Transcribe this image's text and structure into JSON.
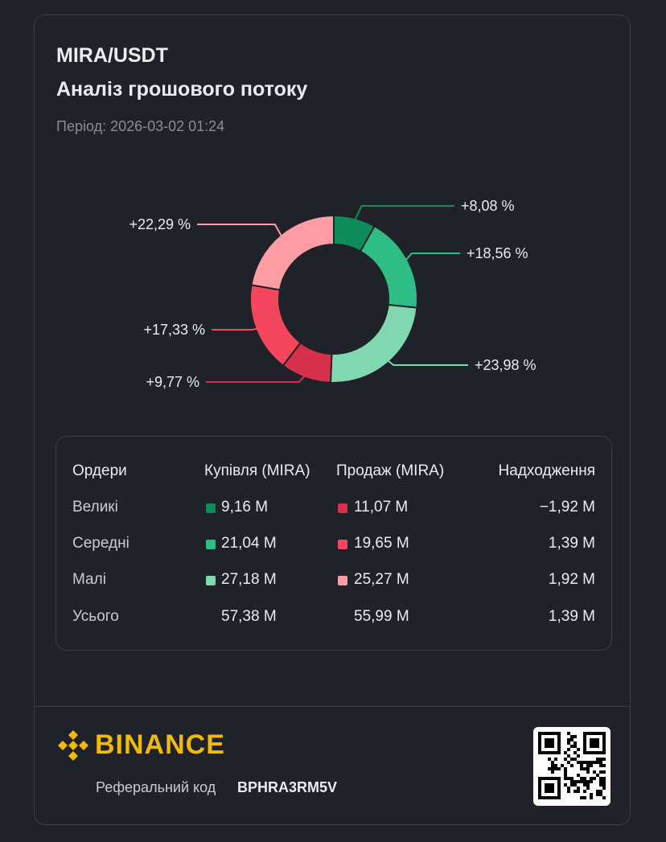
{
  "header": {
    "pair": "MIRA/USDT",
    "title": "Аналіз грошового потоку",
    "period": "Період: 2026-03-02 01:24"
  },
  "chart_data": {
    "type": "pie",
    "title": "",
    "slices": [
      {
        "label": "+8,08 %",
        "value": 8.08,
        "color": "#0e8c5a"
      },
      {
        "label": "+18,56 %",
        "value": 18.56,
        "color": "#2ebd85"
      },
      {
        "label": "+23,98 %",
        "value": 23.98,
        "color": "#7fd8b0"
      },
      {
        "label": "+9,77 %",
        "value": 9.77,
        "color": "#d6304d"
      },
      {
        "label": "+17,33 %",
        "value": 17.33,
        "color": "#f6465d"
      },
      {
        "label": "+22,29 %",
        "value": 22.29,
        "color": "#ff9ca4"
      }
    ]
  },
  "table": {
    "headers": [
      "Ордери",
      "Купівля (MIRA)",
      "Продаж (MIRA)",
      "Надходження"
    ],
    "rows": [
      {
        "label": "Великі",
        "buy": "9,16 M",
        "sell": "11,07 M",
        "inflow": "−1,92 M",
        "buy_color": "#0e8c5a",
        "sell_color": "#d6304d"
      },
      {
        "label": "Середні",
        "buy": "21,04 M",
        "sell": "19,65 M",
        "inflow": "1,39 M",
        "buy_color": "#2ebd85",
        "sell_color": "#f6465d"
      },
      {
        "label": "Малі",
        "buy": "27,18 M",
        "sell": "25,27 M",
        "inflow": "1,92 M",
        "buy_color": "#7fd8b0",
        "sell_color": "#ff9ca4"
      },
      {
        "label": "Усього",
        "buy": "57,38 M",
        "sell": "55,99 M",
        "inflow": "1,39 M"
      }
    ]
  },
  "footer": {
    "brand": "BINANCE",
    "brand_color": "#f0b90b",
    "referral_label": "Реферальний код",
    "referral_code": "BPHRA3RM5V",
    "qr_icon": "qr-code-icon"
  }
}
